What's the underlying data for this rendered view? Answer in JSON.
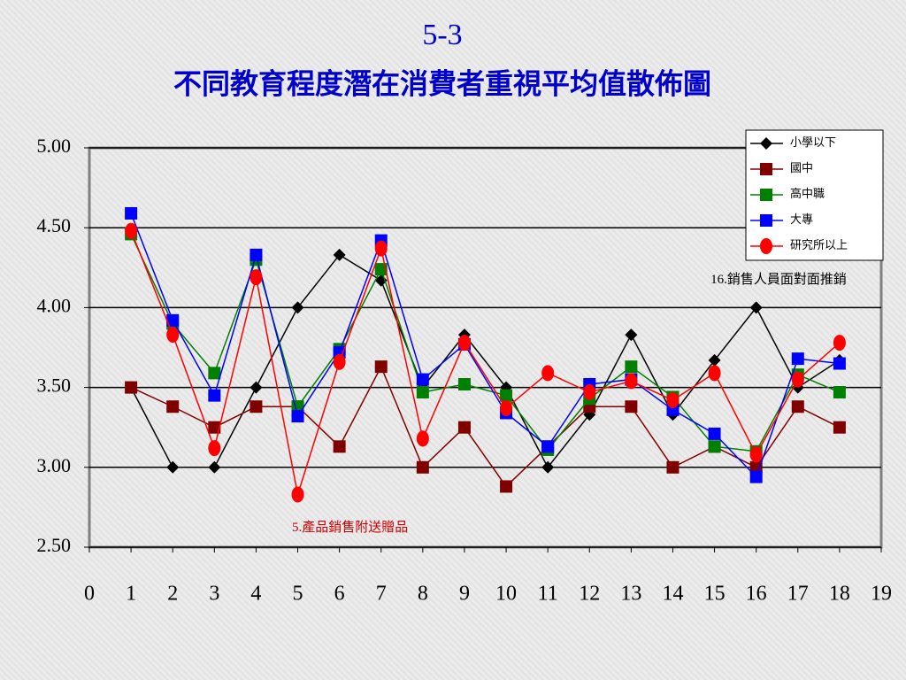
{
  "chart_data": {
    "type": "line",
    "title": "5-3",
    "subtitle": "不同教育程度潛在消費者重視平均值散佈圖",
    "annotations": [
      "16.銷售人員面對面推銷",
      "5.產品銷售附送贈品"
    ],
    "x": [
      1,
      2,
      3,
      4,
      5,
      6,
      7,
      8,
      9,
      10,
      11,
      12,
      13,
      14,
      15,
      16,
      17,
      18
    ],
    "xlim": [
      0,
      19
    ],
    "xticks": [
      0,
      1,
      2,
      3,
      4,
      5,
      6,
      7,
      8,
      9,
      10,
      11,
      12,
      13,
      14,
      15,
      16,
      17,
      18,
      19
    ],
    "ylim": [
      2.5,
      5
    ],
    "yticks": [
      {
        "value": 2.5,
        "label": "2.50"
      },
      {
        "value": 3,
        "label": "3.00"
      },
      {
        "value": 3.5,
        "label": "3.50"
      },
      {
        "value": 4,
        "label": "4.00"
      },
      {
        "value": 4.5,
        "label": "4.50"
      },
      {
        "value": 5,
        "label": "5.00"
      }
    ],
    "grid": true,
    "legend": "top-right",
    "series": [
      {
        "name": "小學以下",
        "color": "#000000",
        "marker": "diamond",
        "values": [
          3.5,
          3.0,
          3.0,
          3.5,
          4.0,
          4.33,
          4.17,
          3.5,
          3.83,
          3.5,
          3.0,
          3.33,
          3.83,
          3.33,
          3.67,
          4.0,
          3.5,
          3.67
        ]
      },
      {
        "name": "國中",
        "color": "#800000",
        "marker": "square",
        "values": [
          3.5,
          3.38,
          3.25,
          3.38,
          3.38,
          3.13,
          3.63,
          3.0,
          3.25,
          2.88,
          3.13,
          3.38,
          3.38,
          3.0,
          3.13,
          3.0,
          3.38,
          3.25
        ]
      },
      {
        "name": "高中職",
        "color": "#008000",
        "marker": "square",
        "values": [
          4.46,
          3.9,
          3.59,
          4.3,
          3.38,
          3.74,
          4.24,
          3.47,
          3.52,
          3.45,
          3.11,
          3.43,
          3.63,
          3.44,
          3.13,
          3.1,
          3.58,
          3.47
        ]
      },
      {
        "name": "大專",
        "color": "#0000ff",
        "marker": "square",
        "values": [
          4.59,
          3.92,
          3.45,
          4.33,
          3.32,
          3.72,
          4.42,
          3.55,
          3.77,
          3.34,
          3.13,
          3.52,
          3.55,
          3.36,
          3.21,
          2.94,
          3.68,
          3.65
        ]
      },
      {
        "name": "研究所以上",
        "color": "#ff0000",
        "marker": "circle",
        "values": [
          4.48,
          3.83,
          3.12,
          4.19,
          2.83,
          3.66,
          4.37,
          3.18,
          3.78,
          3.37,
          3.59,
          3.47,
          3.54,
          3.42,
          3.59,
          3.08,
          3.55,
          3.78
        ]
      }
    ]
  }
}
